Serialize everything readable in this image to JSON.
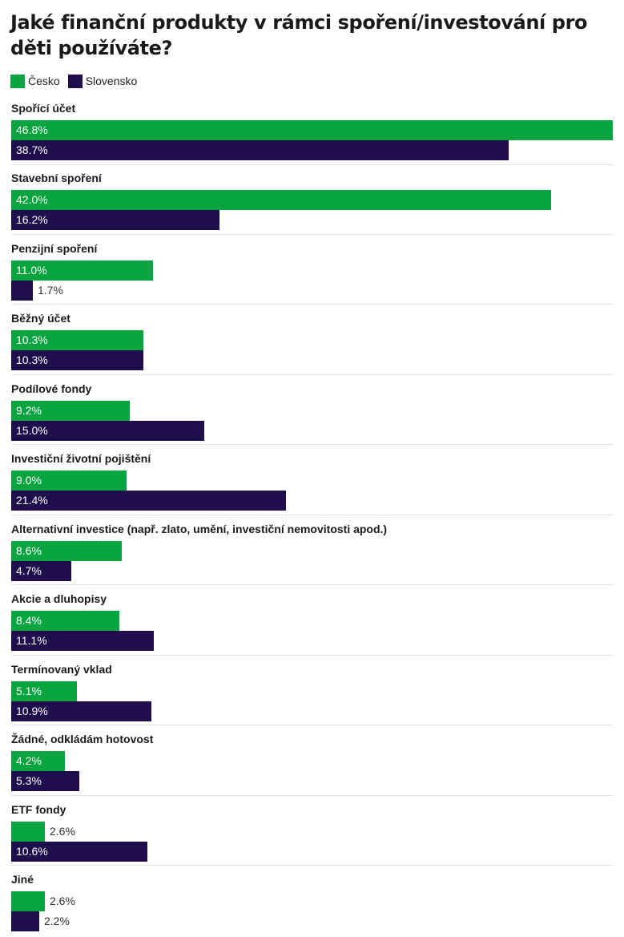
{
  "chart_data": {
    "type": "bar",
    "orientation": "horizontal",
    "title": "Jaké finanční produkty v rámci spoření/investování pro děti používáte?",
    "xlim": [
      0,
      46.8
    ],
    "grid": false,
    "legend_position": "top-left",
    "value_suffix": "%",
    "categories": [
      "Spořící účet",
      "Stavební spoření",
      "Penzijní spoření",
      "Běžný účet",
      "Podílové fondy",
      "Investiční životní pojištění",
      "Alternativní investice (např. zlato, umění, investiční nemovitosti apod.)",
      "Akcie a dluhopisy",
      "Termínovaný vklad",
      "Žádné, odkládám hotovost",
      "ETF fondy",
      "Jiné"
    ],
    "series": [
      {
        "name": "Česko",
        "color": "#08a43f",
        "values": [
          46.8,
          42.0,
          11.0,
          10.3,
          9.2,
          9.0,
          8.6,
          8.4,
          5.1,
          4.2,
          2.6,
          2.6
        ],
        "labels": [
          "46.8%",
          "42.0%",
          "11.0%",
          "10.3%",
          "9.2%",
          "9.0%",
          "8.6%",
          "8.4%",
          "5.1%",
          "4.2%",
          "2.6%",
          "2.6%"
        ]
      },
      {
        "name": "Slovensko",
        "color": "#1f0d4c",
        "values": [
          38.7,
          16.2,
          1.7,
          10.3,
          15.0,
          21.4,
          4.7,
          11.1,
          10.9,
          5.3,
          10.6,
          2.2
        ],
        "labels": [
          "38.7%",
          "16.2%",
          "1.7%",
          "10.3%",
          "15.0%",
          "21.4%",
          "4.7%",
          "11.1%",
          "10.9%",
          "5.3%",
          "10.6%",
          "2.2%"
        ]
      }
    ]
  }
}
